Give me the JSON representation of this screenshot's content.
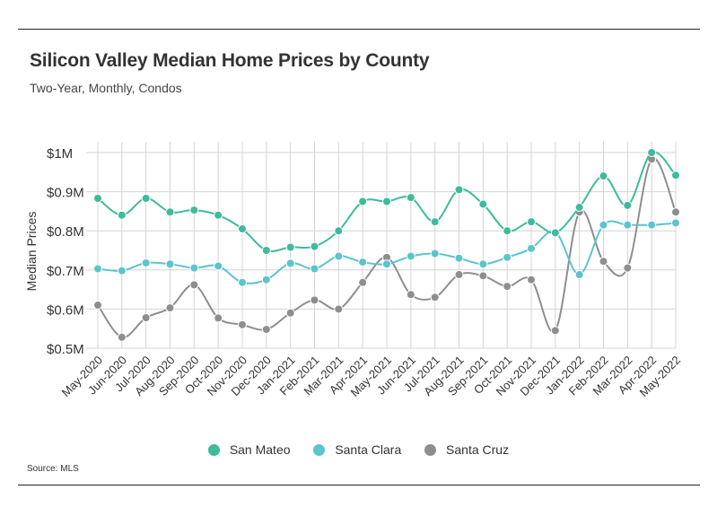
{
  "header": {
    "title": "Silicon Valley Median Home Prices by County",
    "subtitle": "Two-Year, Monthly, Condos"
  },
  "footer": {
    "source": "Source:  MLS"
  },
  "colors": {
    "San Mateo": "#3dbb9c",
    "Santa Clara": "#5bc4cc",
    "Santa Cruz": "#8e8e8e",
    "grid": "#d4d4d4"
  },
  "chart_data": {
    "type": "line",
    "title": "Silicon Valley Median Home Prices by County",
    "subtitle": "Two-Year, Monthly, Condos",
    "ylabel": "Median Prices",
    "xlabel": "",
    "ylim": [
      500000,
      1000000
    ],
    "yticks": [
      500000,
      600000,
      700000,
      800000,
      900000,
      1000000
    ],
    "ytick_labels": [
      "$0.5M",
      "$0.6M",
      "$0.7M",
      "$0.8M",
      "$0.9M",
      "$1M"
    ],
    "grid": true,
    "legend_position": "bottom",
    "x": [
      "May-2020",
      "Jun-2020",
      "Jul-2020",
      "Aug-2020",
      "Sep-2020",
      "Oct-2020",
      "Nov-2020",
      "Dec-2020",
      "Jan-2021",
      "Feb-2021",
      "Mar-2021",
      "Apr-2021",
      "May-2021",
      "Jun-2021",
      "Jul-2021",
      "Aug-2021",
      "Sep-2021",
      "Oct-2021",
      "Nov-2021",
      "Dec-2021",
      "Jan-2022",
      "Feb-2022",
      "Mar-2022",
      "Apr-2022",
      "May-2022"
    ],
    "series": [
      {
        "name": "San Mateo",
        "values": [
          883000,
          840000,
          883000,
          848000,
          853000,
          840000,
          805000,
          750000,
          758000,
          760000,
          800000,
          875000,
          875000,
          885000,
          823000,
          905000,
          868000,
          800000,
          823000,
          795000,
          860000,
          940000,
          865000,
          1000000,
          942000
        ]
      },
      {
        "name": "Santa Clara",
        "values": [
          703000,
          698000,
          718000,
          715000,
          705000,
          710000,
          668000,
          675000,
          717000,
          703000,
          735000,
          720000,
          715000,
          735000,
          742000,
          730000,
          715000,
          732000,
          755000,
          797000,
          688000,
          815000,
          815000,
          815000,
          820000
        ]
      },
      {
        "name": "Santa Cruz",
        "values": [
          610000,
          528000,
          578000,
          603000,
          662000,
          577000,
          560000,
          548000,
          590000,
          623000,
          600000,
          668000,
          732000,
          637000,
          630000,
          688000,
          685000,
          658000,
          675000,
          545000,
          848000,
          722000,
          705000,
          983000,
          848000
        ]
      }
    ]
  }
}
